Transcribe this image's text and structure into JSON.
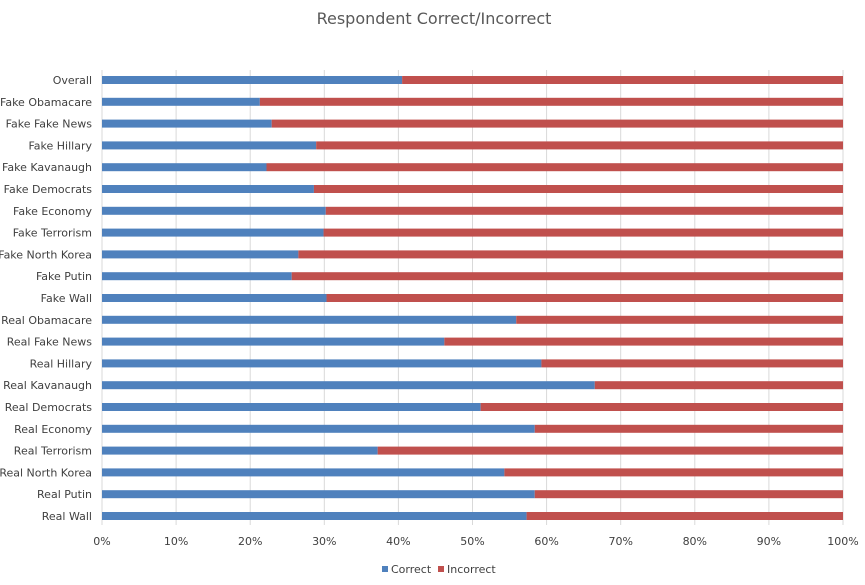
{
  "chart_data": {
    "type": "bar",
    "orientation": "horizontal",
    "stacked": "percent",
    "title": "Respondent Correct/Incorrect",
    "xlabel": "",
    "ylabel": "",
    "xlim": [
      0,
      1
    ],
    "x_ticks": [
      "0%",
      "10%",
      "20%",
      "30%",
      "40%",
      "50%",
      "60%",
      "70%",
      "80%",
      "90%",
      "100%"
    ],
    "grid": true,
    "legend_position": "bottom",
    "categories": [
      "Overall",
      "Fake Obamacare",
      "Fake Fake News",
      "Fake Hillary",
      "Fake Kavanaugh",
      "Fake Democrats",
      "Fake Economy",
      "Fake Terrorism",
      "Fake North Korea",
      "Fake Putin",
      "Fake Wall",
      "Real Obamacare",
      "Real Fake News",
      "Real Hillary",
      "Real Kavanaugh",
      "Real Democrats",
      "Real Economy",
      "Real Terrorism",
      "Real North Korea",
      "Real Putin",
      "Real Wall"
    ],
    "series": [
      {
        "name": "Correct",
        "color": "#4f81bd",
        "values": [
          0.405,
          0.213,
          0.229,
          0.289,
          0.222,
          0.286,
          0.302,
          0.299,
          0.265,
          0.256,
          0.303,
          0.559,
          0.462,
          0.593,
          0.665,
          0.511,
          0.584,
          0.372,
          0.543,
          0.584,
          0.573
        ]
      },
      {
        "name": "Incorrect",
        "color": "#c0504d",
        "values": [
          0.595,
          0.787,
          0.771,
          0.711,
          0.778,
          0.714,
          0.698,
          0.701,
          0.735,
          0.744,
          0.697,
          0.441,
          0.538,
          0.407,
          0.335,
          0.489,
          0.416,
          0.628,
          0.457,
          0.416,
          0.427
        ]
      }
    ]
  }
}
